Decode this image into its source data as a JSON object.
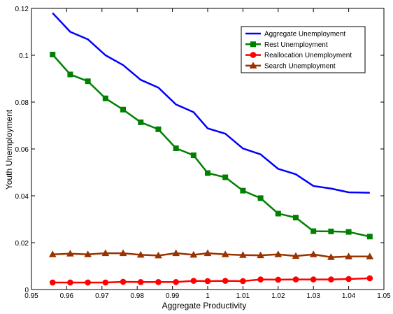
{
  "chart_data": {
    "type": "line",
    "title": "",
    "xlabel": "Aggregate Productivity",
    "ylabel": "Youth Unemployment",
    "xlim": [
      0.95,
      1.05
    ],
    "ylim": [
      0,
      0.12
    ],
    "xticks": [
      "0.95",
      "0.96",
      "0.97",
      "0.98",
      "0.99",
      "1",
      "1.01",
      "1.02",
      "1.03",
      "1.04",
      "1.05"
    ],
    "yticks": [
      "0",
      "0.02",
      "0.04",
      "0.06",
      "0.08",
      "0.1",
      "0.12"
    ],
    "grid": false,
    "legend_position": "top-right",
    "x": [
      0.956,
      0.961,
      0.966,
      0.971,
      0.976,
      0.981,
      0.986,
      0.991,
      0.996,
      1.0,
      1.005,
      1.01,
      1.015,
      1.02,
      1.025,
      1.03,
      1.035,
      1.04,
      1.046
    ],
    "series": [
      {
        "name": "Aggregate Unemployment",
        "color": "#0000ff",
        "marker": "none",
        "values": [
          0.118,
          0.11,
          0.1068,
          0.1,
          0.0958,
          0.0895,
          0.0862,
          0.079,
          0.0757,
          0.0688,
          0.0665,
          0.0602,
          0.0577,
          0.0515,
          0.0492,
          0.0442,
          0.0431,
          0.0415,
          0.0413
        ]
      },
      {
        "name": "Rest Unemployment",
        "color": "#008000",
        "marker": "square",
        "values": [
          0.1003,
          0.0918,
          0.0889,
          0.0816,
          0.0768,
          0.0714,
          0.0684,
          0.0603,
          0.0573,
          0.0497,
          0.0479,
          0.0422,
          0.039,
          0.0324,
          0.0307,
          0.0249,
          0.0248,
          0.0246,
          0.0226
        ]
      },
      {
        "name": "Reallocation Unemployment",
        "color": "#ff0000",
        "marker": "circle",
        "values": [
          0.003,
          0.003,
          0.003,
          0.003,
          0.0033,
          0.0032,
          0.0032,
          0.0032,
          0.0037,
          0.0036,
          0.0037,
          0.0036,
          0.0043,
          0.0042,
          0.0043,
          0.0043,
          0.0043,
          0.0045,
          0.0048
        ]
      },
      {
        "name": "Search Unemployment",
        "color": "#993300",
        "marker": "triangle",
        "values": [
          0.015,
          0.0153,
          0.015,
          0.0155,
          0.0155,
          0.0148,
          0.0145,
          0.0155,
          0.0148,
          0.0155,
          0.015,
          0.0147,
          0.0146,
          0.015,
          0.0143,
          0.015,
          0.0138,
          0.0141,
          0.0141
        ]
      }
    ]
  }
}
